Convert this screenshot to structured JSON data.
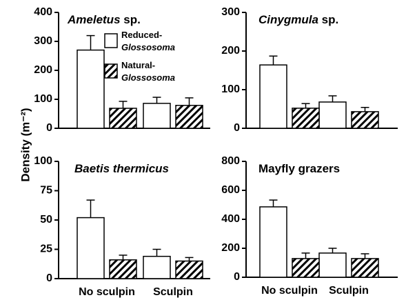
{
  "ylabel": "Density (m⁻²)",
  "chart_data": [
    {
      "type": "bar",
      "title": "Ameletus sp.",
      "title_italic_words": 1,
      "legend": true,
      "categories": [
        null,
        null
      ],
      "ylim": [
        0,
        400
      ],
      "yticks": [
        0,
        100,
        200,
        300,
        400
      ],
      "series": [
        {
          "name": "Reduced-Glossosoma",
          "color": "#ffffff",
          "values": [
            270,
            86
          ],
          "errors": [
            50,
            21
          ]
        },
        {
          "name": "Natural-Glossosoma",
          "color": "hatch",
          "values": [
            69,
            79
          ],
          "errors": [
            24,
            26
          ]
        }
      ]
    },
    {
      "type": "bar",
      "title": "Cinygmula sp.",
      "title_italic_words": 1,
      "legend": false,
      "categories": [
        null,
        null
      ],
      "ylim": [
        0,
        300
      ],
      "yticks": [
        0,
        100,
        200,
        300
      ],
      "series": [
        {
          "name": "Reduced-Glossosoma",
          "color": "#ffffff",
          "values": [
            164,
            68
          ],
          "errors": [
            23,
            16
          ]
        },
        {
          "name": "Natural-Glossosoma",
          "color": "hatch",
          "values": [
            52,
            43
          ],
          "errors": [
            12,
            11
          ]
        }
      ]
    },
    {
      "type": "bar",
      "title": "Baetis thermicus",
      "title_italic_words": 2,
      "legend": false,
      "categories": [
        "No sculpin",
        "Sculpin"
      ],
      "ylim": [
        0,
        100
      ],
      "yticks": [
        0,
        25,
        50,
        75,
        100
      ],
      "series": [
        {
          "name": "Reduced-Glossosoma",
          "color": "#ffffff",
          "values": [
            52,
            19
          ],
          "errors": [
            15,
            6
          ]
        },
        {
          "name": "Natural-Glossosoma",
          "color": "hatch",
          "values": [
            16,
            15
          ],
          "errors": [
            4,
            3
          ]
        }
      ]
    },
    {
      "type": "bar",
      "title": "Mayfly grazers",
      "title_italic_words": 0,
      "legend": false,
      "categories": [
        "No sculpin",
        "Sculpin"
      ],
      "ylim": [
        0,
        800
      ],
      "yticks": [
        0,
        200,
        400,
        600,
        800
      ],
      "series": [
        {
          "name": "Reduced-Glossosoma",
          "color": "#ffffff",
          "values": [
            486,
            167
          ],
          "errors": [
            47,
            33
          ]
        },
        {
          "name": "Natural-Glossosoma",
          "color": "hatch",
          "values": [
            129,
            129
          ],
          "errors": [
            38,
            33
          ]
        }
      ]
    }
  ]
}
